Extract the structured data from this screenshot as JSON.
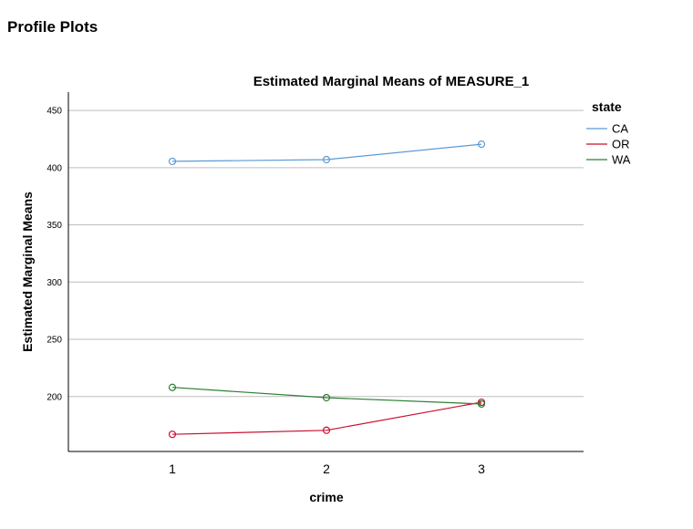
{
  "heading": "Profile Plots",
  "chart_data": {
    "type": "line",
    "title": "Estimated Marginal Means of MEASURE_1",
    "xlabel": "crime",
    "ylabel": "Estimated Marginal Means",
    "categories": [
      "1",
      "2",
      "3"
    ],
    "yticks": [
      200,
      250,
      300,
      350,
      400,
      450
    ],
    "ylim": [
      152,
      466
    ],
    "grid": true,
    "legend_title": "state",
    "legend_position": "right",
    "series": [
      {
        "name": "CA",
        "color": "#5b9bd5",
        "values": [
          405.5,
          407,
          420.5
        ]
      },
      {
        "name": "OR",
        "color": "#c8102e",
        "values": [
          167,
          170.5,
          195
        ]
      },
      {
        "name": "WA",
        "color": "#2e7d32",
        "values": [
          208,
          199,
          193.5
        ]
      }
    ]
  }
}
